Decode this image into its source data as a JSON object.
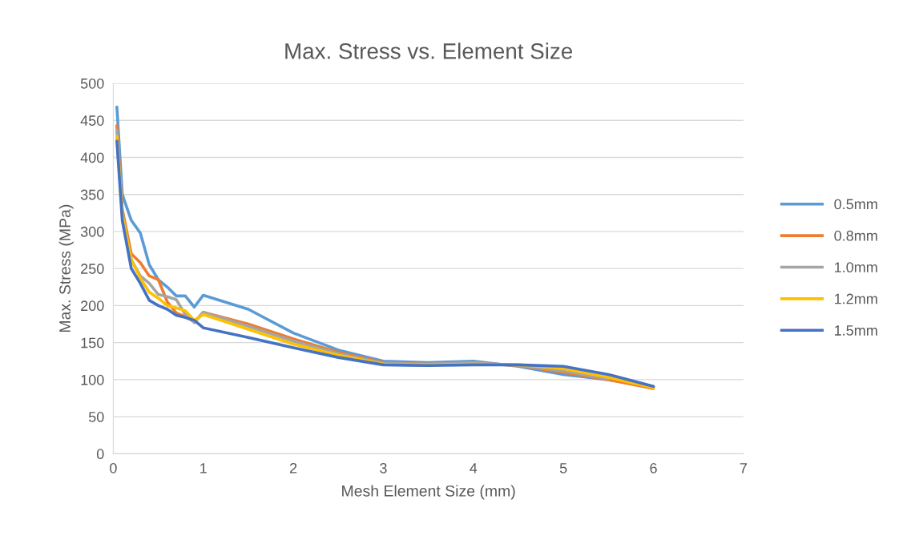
{
  "chart_data": {
    "type": "line",
    "title": "Max. Stress vs. Element Size",
    "xlabel": "Mesh Element Size (mm)",
    "ylabel": "Max. Stress (MPa)",
    "x": [
      0.04,
      0.1,
      0.2,
      0.3,
      0.4,
      0.5,
      0.6,
      0.7,
      0.8,
      0.9,
      1.0,
      1.5,
      2,
      2.5,
      3,
      3.5,
      4,
      4.5,
      5,
      5.5,
      6
    ],
    "series": [
      {
        "name": "0.5mm",
        "color": "#5b9bd5",
        "values": [
          468,
          350,
          315,
          298,
          255,
          235,
          225,
          213,
          213,
          198,
          214,
          195,
          163,
          140,
          125,
          123,
          125,
          118,
          107,
          100,
          90
        ]
      },
      {
        "name": "0.8mm",
        "color": "#ed7d31",
        "values": [
          443,
          330,
          270,
          258,
          240,
          235,
          205,
          190,
          185,
          178,
          191,
          175,
          155,
          137,
          123,
          121,
          122,
          119,
          110,
          100,
          88
        ]
      },
      {
        "name": "1.0mm",
        "color": "#a5a5a5",
        "values": [
          437,
          325,
          262,
          240,
          230,
          215,
          212,
          208,
          188,
          177,
          191,
          172,
          152,
          135,
          122,
          121,
          123,
          119,
          112,
          101,
          null
        ]
      },
      {
        "name": "1.2mm",
        "color": "#ffc000",
        "values": [
          428,
          322,
          262,
          237,
          218,
          210,
          200,
          197,
          193,
          180,
          188,
          168,
          148,
          133,
          121,
          120,
          121,
          120,
          115,
          103,
          89
        ]
      },
      {
        "name": "1.5mm",
        "color": "#4472c4",
        "values": [
          422,
          315,
          250,
          230,
          207,
          200,
          195,
          187,
          184,
          180,
          170,
          157,
          143,
          130,
          120,
          119,
          120,
          120,
          118,
          107,
          91
        ]
      }
    ],
    "xlim": [
      0,
      7
    ],
    "xticks": [
      0,
      1,
      2,
      3,
      4,
      5,
      6,
      7
    ],
    "ylim": [
      0,
      500
    ],
    "yticks": [
      0,
      50,
      100,
      150,
      200,
      250,
      300,
      350,
      400,
      450,
      500
    ],
    "grid": "y",
    "legend": "right",
    "marker": "none",
    "line_style": "solid"
  }
}
